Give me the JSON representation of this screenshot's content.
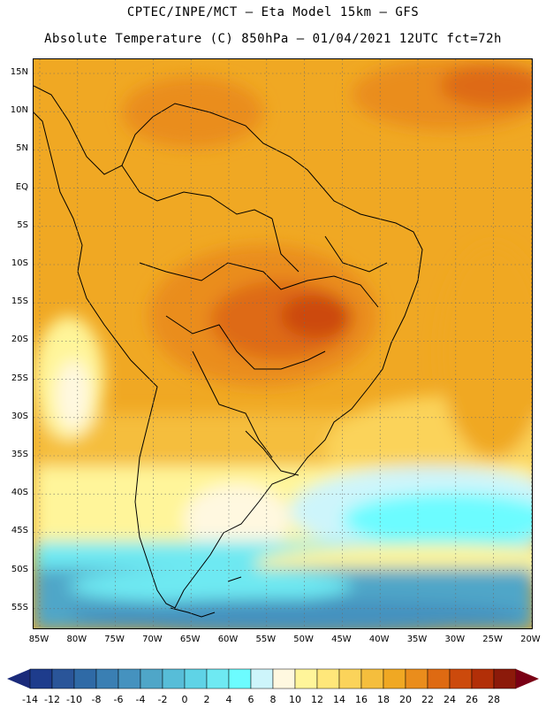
{
  "header": {
    "line1": "CPTEC/INPE/MCT –  Eta Model 15km – GFS",
    "line2": "Absolute Temperature (C) 850hPa – 01/04/2021 12UTC fct=72h"
  },
  "axes": {
    "lat_labels": [
      "15N",
      "10N",
      "5N",
      "EQ",
      "5S",
      "10S",
      "15S",
      "20S",
      "25S",
      "30S",
      "35S",
      "40S",
      "45S",
      "50S",
      "55S"
    ],
    "lon_labels": [
      "85W",
      "80W",
      "75W",
      "70W",
      "65W",
      "60W",
      "55W",
      "50W",
      "45W",
      "40W",
      "35W",
      "30W",
      "25W",
      "20W"
    ]
  },
  "legend": {
    "labels": [
      "-14",
      "-12",
      "-10",
      "-8",
      "-6",
      "-4",
      "-2",
      "0",
      "2",
      "4",
      "6",
      "8",
      "10",
      "12",
      "14",
      "16",
      "18",
      "20",
      "22",
      "24",
      "26",
      "28"
    ],
    "colors": [
      "#1e3c8c",
      "#2a5599",
      "#2f6aa6",
      "#3a7fb3",
      "#4592bf",
      "#4fa6c8",
      "#57bdd8",
      "#5fd3e6",
      "#6ee9f2",
      "#6cfcff",
      "#cdf5fb",
      "#fff8e0",
      "#fff59a",
      "#ffe77a",
      "#fbd35a",
      "#f5be3d",
      "#f0a823",
      "#ea8d1c",
      "#de6a12",
      "#cc4a0c",
      "#b22f08",
      "#8c1a0a"
    ],
    "under_color": "#1a2a7a",
    "over_color": "#7a0015"
  }
}
